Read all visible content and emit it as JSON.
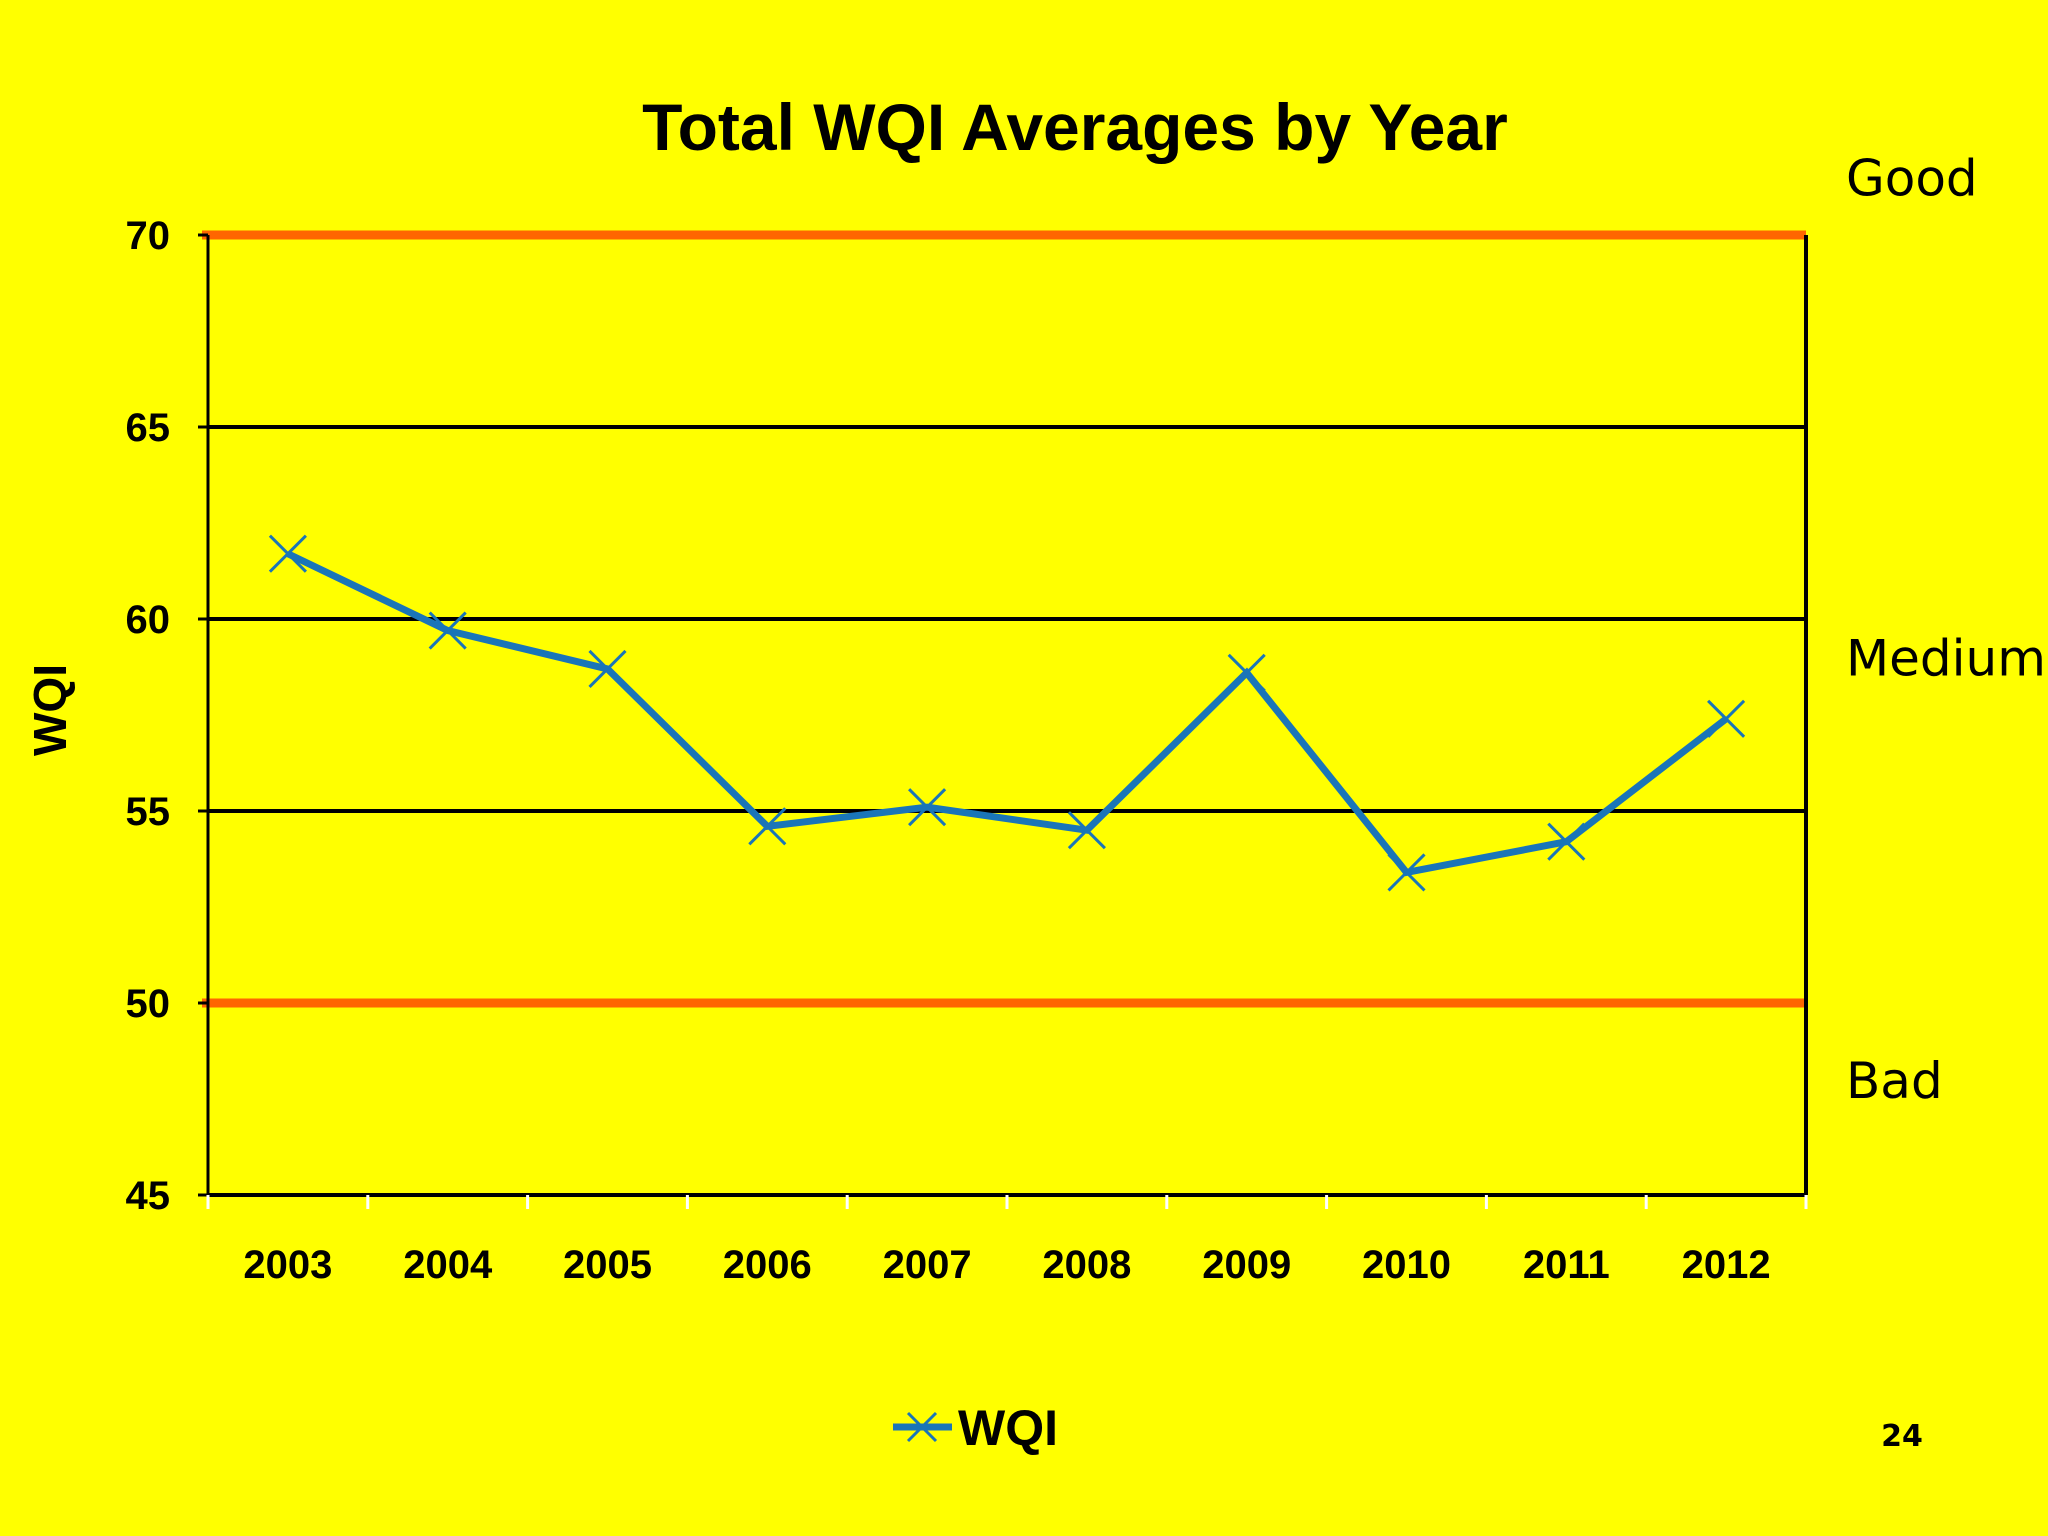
{
  "chart_data": {
    "type": "line",
    "title": "Total WQI Averages by Year",
    "xlabel": "",
    "ylabel": "WQI",
    "categories": [
      "2003",
      "2004",
      "2005",
      "2006",
      "2007",
      "2008",
      "2009",
      "2010",
      "2011",
      "2012"
    ],
    "series": [
      {
        "name": "WQI",
        "values": [
          61.7,
          59.7,
          58.7,
          54.6,
          55.1,
          54.5,
          58.6,
          53.4,
          54.2,
          57.4
        ],
        "color": "#1a75b8",
        "marker": "x"
      }
    ],
    "ylim": [
      45,
      70
    ],
    "yticks": [
      "45",
      "50",
      "55",
      "60",
      "65",
      "70"
    ],
    "grid": "horizontal",
    "reference_lines": [
      {
        "value": 70,
        "color": "#ff6600"
      },
      {
        "value": 50,
        "color": "#ff6600"
      }
    ],
    "zone_labels": [
      {
        "label": "Good",
        "value": 71.5
      },
      {
        "label": "Medium",
        "value": 59
      },
      {
        "label": "Bad",
        "value": 48
      }
    ],
    "legend": {
      "position": "bottom-center",
      "entries": [
        "WQI"
      ]
    },
    "background_color": "#ffff00",
    "grid_color": "#000000"
  },
  "page": {
    "number": "24"
  }
}
